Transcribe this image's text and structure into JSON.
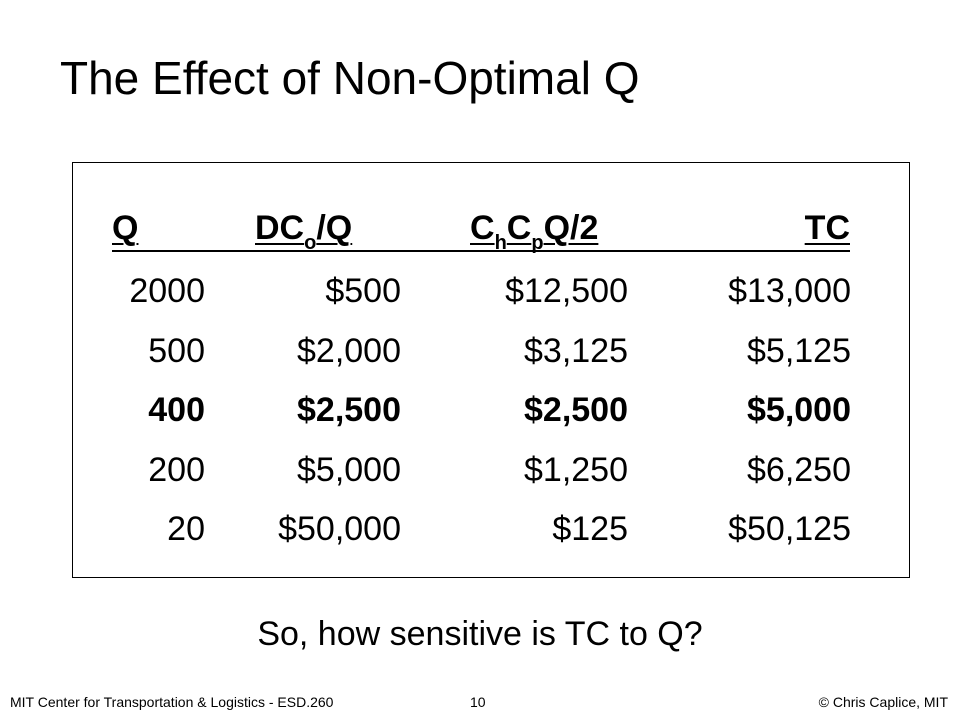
{
  "title": "The Effect of Non-Optimal Q",
  "table": {
    "headers": {
      "q": "Q",
      "order_cost_main": "DC",
      "order_cost_sub": "o",
      "order_cost_tail": "/Q",
      "hold_c1": "C",
      "hold_sub1": "h",
      "hold_c2": "C",
      "hold_sub2": "p",
      "hold_tail": "Q/2",
      "tc": "TC"
    },
    "rows": [
      {
        "q": "2000",
        "order": "$500",
        "hold": "$12,500",
        "tc": "$13,000",
        "bold": false
      },
      {
        "q": "500",
        "order": "$2,000",
        "hold": "$3,125",
        "tc": "$5,125",
        "bold": false
      },
      {
        "q": "400",
        "order": "$2,500",
        "hold": "$2,500",
        "tc": "$5,000",
        "bold": true
      },
      {
        "q": "200",
        "order": "$5,000",
        "hold": "$1,250",
        "tc": "$6,250",
        "bold": false
      },
      {
        "q": "20",
        "order": "$50,000",
        "hold": "$125",
        "tc": "$50,125",
        "bold": false
      }
    ]
  },
  "question": "So, how sensitive is TC to Q?",
  "footer": {
    "left": "MIT Center for Transportation & Logistics - ESD.260",
    "page": "10",
    "right": "© Chris Caplice, MIT"
  }
}
